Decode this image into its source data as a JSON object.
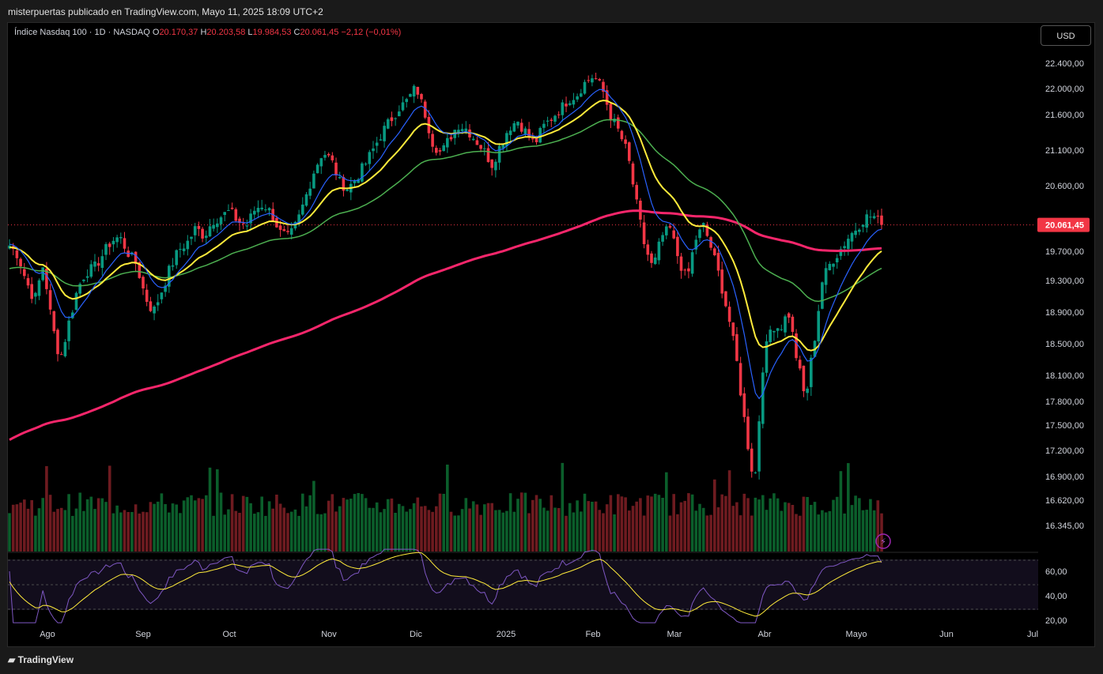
{
  "header": {
    "published": "misterpuertas publicado en TradingView.com, Mayo 11, 2025 18:09 UTC+2"
  },
  "legend": {
    "symbol": "Índice Nasdaq 100 · 1D · NASDAQ",
    "o_label": "O",
    "o_value": "20.170,37",
    "h_label": "H",
    "h_value": "20.203,58",
    "l_label": "L",
    "l_value": "19.984,53",
    "c_label": "C",
    "c_value": "20.061,45",
    "change": "−2,12 (−0,01%)"
  },
  "currency_button": "USD",
  "footer": {
    "logo_text": "TradingView"
  },
  "colors": {
    "up": "#089981",
    "down": "#f23645",
    "ema_fast": "#2962ff",
    "ema_mid": "#ffeb3b",
    "ema_slow": "#4caf50",
    "ema_long": "#f7266b",
    "rsi": "#7e57c2",
    "rsi_ma": "#ffeb3b"
  },
  "chart_data": {
    "type": "candlestick",
    "x_labels": [
      "Ago",
      "Sep",
      "Oct",
      "Nov",
      "Dic",
      "2025",
      "Feb",
      "Mar",
      "Abr",
      "Mayo",
      "Jun",
      "Jul"
    ],
    "y_ticks": [
      "22.400,00",
      "22.000,00",
      "21.600,00",
      "21.100,00",
      "20.600,00",
      "19.700,00",
      "19.300,00",
      "18.900,00",
      "18.500,00",
      "18.100,00",
      "17.800,00",
      "17.500,00",
      "17.200,00",
      "16.900,00",
      "16.620,00",
      "16.345,00"
    ],
    "last_price": "20.061,45",
    "rsi_ticks": [
      "60,00",
      "40,00",
      "20,00"
    ],
    "close_path": [
      19780,
      19650,
      19280,
      19050,
      19520,
      18750,
      18300,
      18760,
      19180,
      19420,
      19470,
      19650,
      19840,
      19900,
      19680,
      19520,
      19100,
      18900,
      19180,
      19480,
      19720,
      19820,
      20020,
      19910,
      20120,
      20180,
      20250,
      20110,
      20050,
      20280,
      20350,
      20210,
      19950,
      19880,
      20100,
      20450,
      20820,
      21080,
      20960,
      20650,
      20560,
      20720,
      20900,
      21120,
      21350,
      21520,
      21700,
      21820,
      22030,
      21650,
      21200,
      21050,
      21280,
      21460,
      21400,
      21250,
      21100,
      20900,
      21180,
      21420,
      21520,
      21350,
      21180,
      21420,
      21550,
      21680,
      21830,
      21900,
      22100,
      22200,
      22000,
      21580,
      21350,
      21050,
      20380,
      19780,
      19450,
      19900,
      20010,
      19600,
      19300,
      19860,
      20050,
      19700,
      19280,
      18800,
      18200,
      17400,
      16800,
      18250,
      18750,
      18700,
      18900,
      18300,
      17800,
      18500,
      19300,
      19550,
      19700,
      19880,
      20020,
      20160,
      20190,
      20060
    ],
    "emas": {
      "fast": "EMA ~10",
      "mid": "EMA ~20",
      "slow": "EMA ~50",
      "long": "EMA ~200"
    }
  }
}
